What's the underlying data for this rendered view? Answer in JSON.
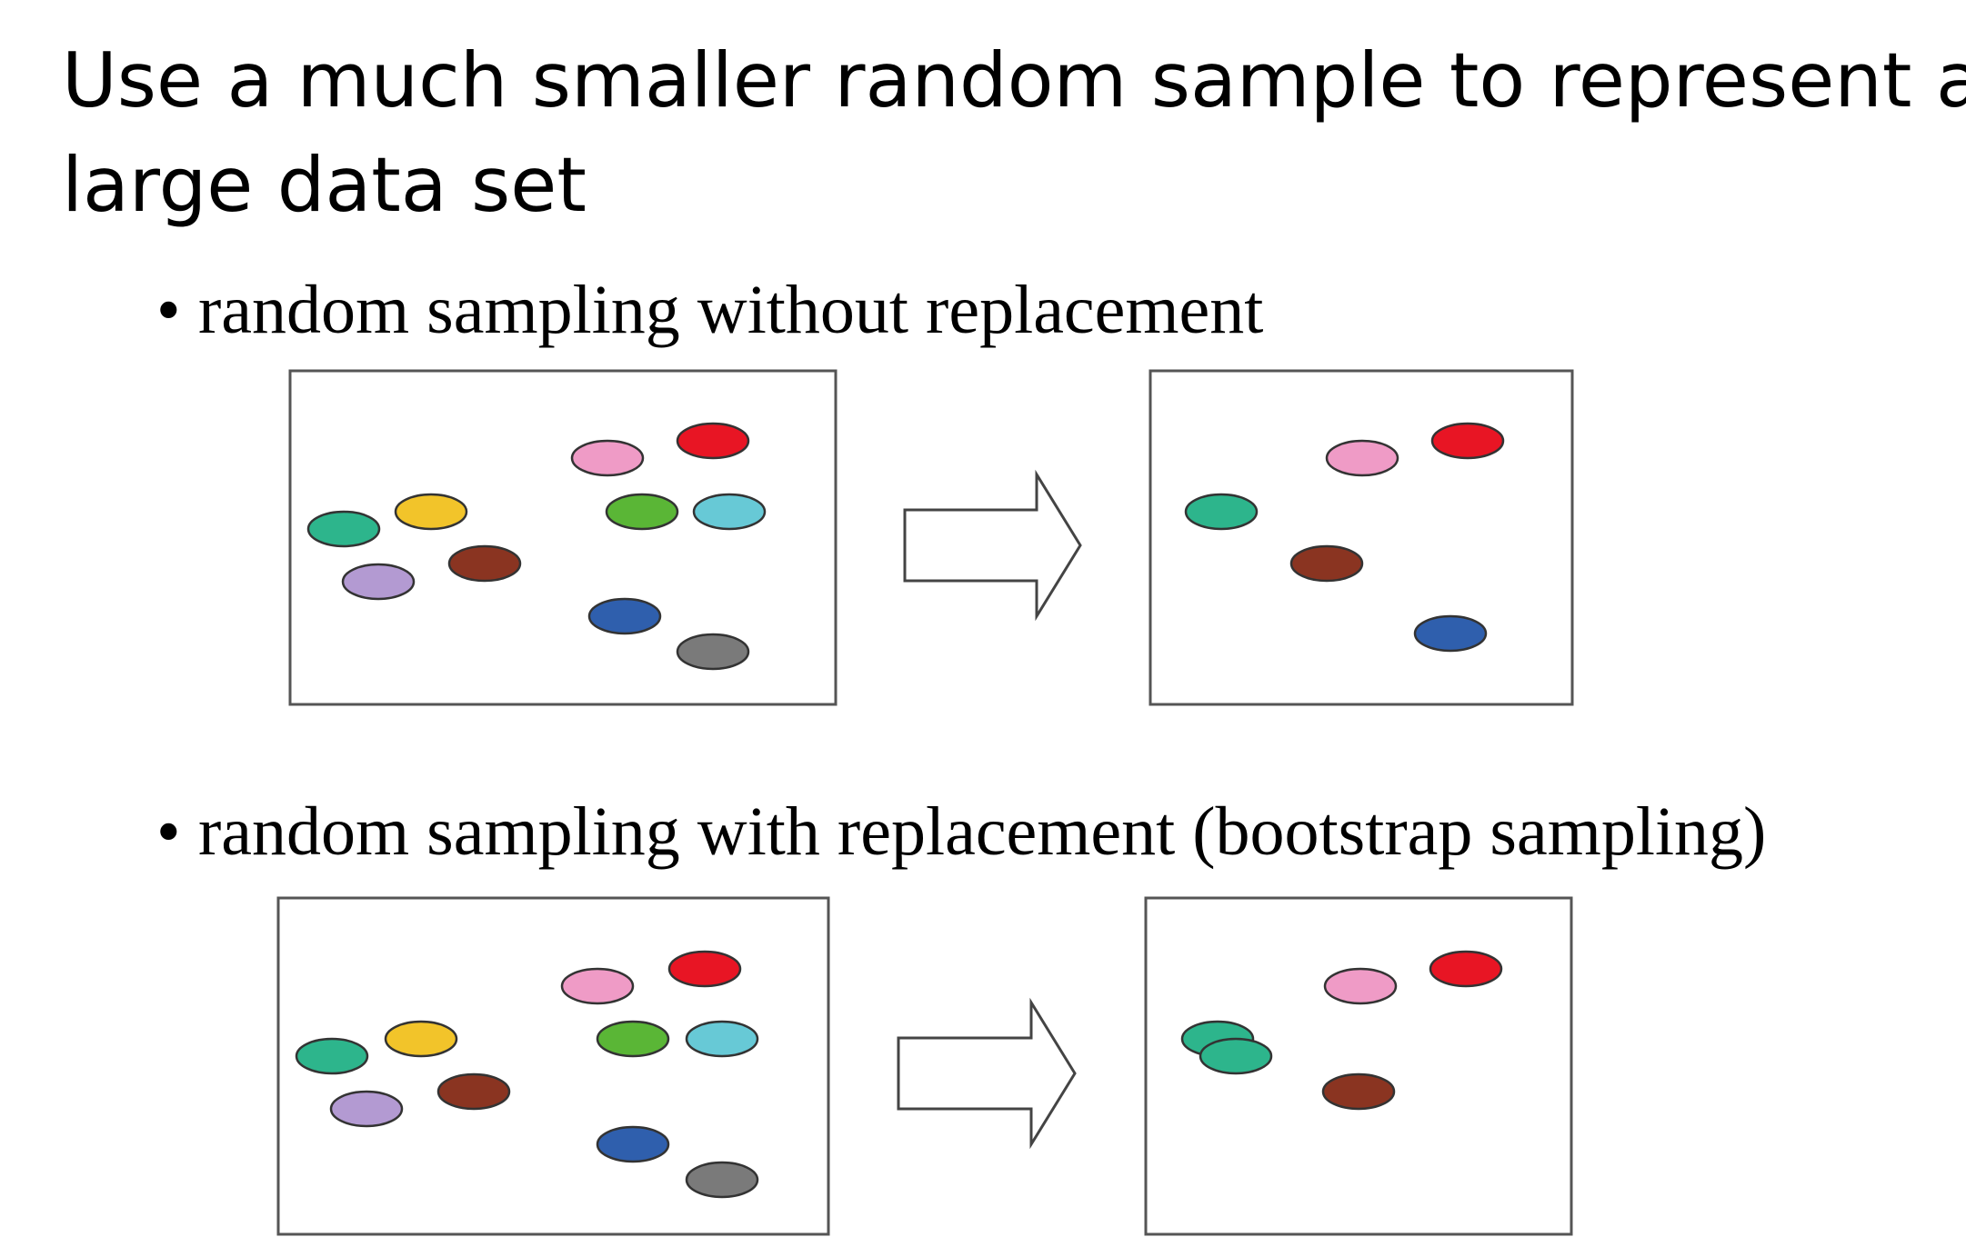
{
  "slide": {
    "title_line1": "Use a much smaller random sample to represent a",
    "title_line2": "large data set"
  },
  "sections": [
    {
      "bullet": "•",
      "label": "random sampling without replacement",
      "population": [
        {
          "color_name": "teal",
          "color": "#2db58c"
        },
        {
          "color_name": "yellow",
          "color": "#f2c42a"
        },
        {
          "color_name": "purple",
          "color": "#b39ad2"
        },
        {
          "color_name": "brown",
          "color": "#8a3421"
        },
        {
          "color_name": "pink",
          "color": "#ef9bc6"
        },
        {
          "color_name": "red",
          "color": "#e81524"
        },
        {
          "color_name": "green",
          "color": "#5ab636"
        },
        {
          "color_name": "cyan",
          "color": "#67c9d6"
        },
        {
          "color_name": "blue",
          "color": "#2f5fad"
        },
        {
          "color_name": "gray",
          "color": "#7a7a7a"
        }
      ],
      "sample": [
        {
          "color_name": "pink",
          "color": "#ef9bc6"
        },
        {
          "color_name": "red",
          "color": "#e81524"
        },
        {
          "color_name": "teal",
          "color": "#2db58c"
        },
        {
          "color_name": "brown",
          "color": "#8a3421"
        },
        {
          "color_name": "blue",
          "color": "#2f5fad"
        }
      ]
    },
    {
      "bullet": "•",
      "label": "random sampling with replacement (bootstrap sampling)",
      "population": [
        {
          "color_name": "teal",
          "color": "#2db58c"
        },
        {
          "color_name": "yellow",
          "color": "#f2c42a"
        },
        {
          "color_name": "purple",
          "color": "#b39ad2"
        },
        {
          "color_name": "brown",
          "color": "#8a3421"
        },
        {
          "color_name": "pink",
          "color": "#ef9bc6"
        },
        {
          "color_name": "red",
          "color": "#e81524"
        },
        {
          "color_name": "green",
          "color": "#5ab636"
        },
        {
          "color_name": "cyan",
          "color": "#67c9d6"
        },
        {
          "color_name": "blue",
          "color": "#2f5fad"
        },
        {
          "color_name": "gray",
          "color": "#7a7a7a"
        }
      ],
      "sample": [
        {
          "color_name": "pink",
          "color": "#ef9bc6"
        },
        {
          "color_name": "red",
          "color": "#e81524"
        },
        {
          "color_name": "teal",
          "color": "#2db58c"
        },
        {
          "color_name": "teal",
          "color": "#2db58c"
        },
        {
          "color_name": "brown",
          "color": "#8a3421"
        }
      ]
    }
  ],
  "arrow_icon": "right-block-arrow-icon"
}
